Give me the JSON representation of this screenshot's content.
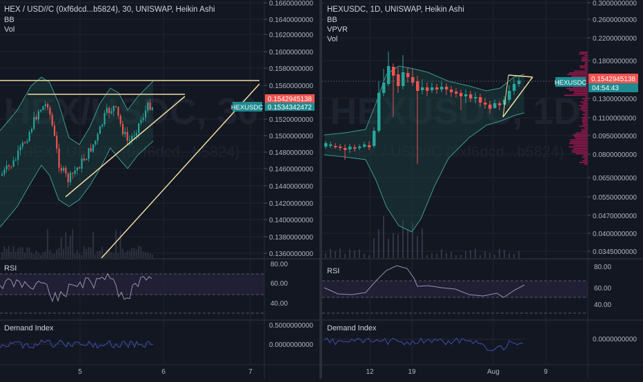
{
  "colors": {
    "background": "#131722",
    "grid": "#1f2433",
    "divider": "#2a2e39",
    "text": "#d1d4dc",
    "axis_text": "#b2b5be",
    "bb_line": "#3d9b8f",
    "bb_fill": "#1c4d49",
    "candle_up": "#26a69a",
    "candle_down": "#ef5350",
    "trendline": "#f3dfa2",
    "rsi_line": "#9a8fb8",
    "rsi_band": "#2a2440",
    "demand_line": "#3f51b5",
    "price_label_red": "#ef5350",
    "price_label_teal": "#1e8a8f",
    "vpvr": "#c2185b"
  },
  "left_chart": {
    "title": "HEX / USD//C (0xf6dcd...b5824), 30, UNISWAP, Heikin Ashi",
    "indicator1": "BB",
    "indicator2": "Vol",
    "watermark_symbol": "HEX/USDC, 30",
    "watermark_sub": "HEX / USD//C (0xf6dcd...b5824)",
    "price_ticks": [
      "0.1660000000",
      "0.1640000000",
      "0.1620000000",
      "0.1600000000",
      "0.1580000000",
      "0.1560000000",
      "0.1520000000",
      "0.1500000000",
      "0.1480000000",
      "0.1460000000",
      "0.1440000000",
      "0.1420000000",
      "0.1400000000",
      "0.1380000000",
      "0.1360000000"
    ],
    "current_price_label": "0.1542945138",
    "symbol_label": "HEXUSDC",
    "symbol_price_label": "0.1534342472",
    "rsi_label": "RSI",
    "rsi_ticks": [
      "80.00",
      "60.00",
      "40.00"
    ],
    "demand_label": "Demand Index",
    "demand_ticks": [
      "0.5000000000",
      "0.0000000000"
    ],
    "time_ticks": [
      "5",
      "6",
      "7"
    ]
  },
  "right_chart": {
    "title": "HEXUSDC, 1D, UNISWAP, Heikin Ashi",
    "indicator1": "BB",
    "indicator2": "VPVR",
    "indicator3": "Vol",
    "watermark_symbol": "HEXUSDC, 1D",
    "watermark_sub": "HEX / USD//C (0xf6dcd...b5824)",
    "price_ticks": [
      "0.3000000000",
      "0.2600000000",
      "0.2200000000",
      "0.1800000000",
      "0.1300000000",
      "0.1100000000",
      "0.0950000000",
      "0.0800000000",
      "0.0650000000",
      "0.0550000000",
      "0.0470000000",
      "0.0400000000",
      "0.0345000000"
    ],
    "current_price_label": "0.1542945138",
    "countdown_label": "04:54:43",
    "symbol_label": "HEXUSDC",
    "rsi_label": "RSI",
    "rsi_ticks": [
      "80.00",
      "60.00",
      "40.00"
    ],
    "demand_label": "Demand Index",
    "demand_ticks": [
      "0.0000000000"
    ],
    "time_ticks": [
      "12",
      "19",
      "Aug",
      "9"
    ]
  }
}
